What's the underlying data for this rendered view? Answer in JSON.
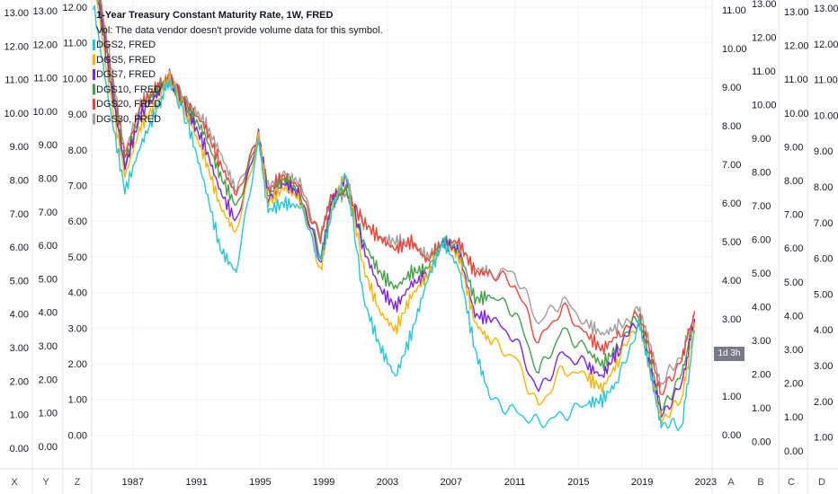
{
  "chart_data": {
    "type": "line",
    "title": "1-Year Treasury Constant Maturity Rate, 1W, FRED",
    "subtitle": "Vol: The data vendor doesn't provide volume data for this symbol.",
    "x_ticks": [
      "1987",
      "1991",
      "1995",
      "1999",
      "2003",
      "2007",
      "2011",
      "2015",
      "2019",
      "2023"
    ],
    "x_range": [
      1984.3,
      2023.4
    ],
    "price_tag": "1d 3h",
    "axes": [
      {
        "id": "X",
        "ticks": [
          "13.00",
          "12.00",
          "11.00",
          "10.00",
          "9.00",
          "8.00",
          "7.00",
          "6.00",
          "5.00",
          "4.00",
          "3.00",
          "2.00",
          "1.00",
          "0.00"
        ]
      },
      {
        "id": "Y",
        "ticks": [
          "13.00",
          "12.00",
          "11.00",
          "10.00",
          "9.00",
          "8.00",
          "7.00",
          "6.00",
          "5.00",
          "4.00",
          "3.00",
          "2.00",
          "1.00",
          "0.00"
        ]
      },
      {
        "id": "Z",
        "ticks": [
          "12.00",
          "11.00",
          "10.00",
          "9.00",
          "8.00",
          "7.00",
          "6.00",
          "5.00",
          "4.00",
          "3.00",
          "2.00",
          "1.00",
          "0.00"
        ]
      },
      {
        "id": "A",
        "ticks": [
          "11.00",
          "10.00",
          "9.00",
          "8.00",
          "7.00",
          "6.00",
          "5.00",
          "4.00",
          "3.00",
          "2.00",
          "1.00",
          "0.00"
        ]
      },
      {
        "id": "B",
        "ticks": [
          "13.00",
          "12.00",
          "11.00",
          "10.00",
          "9.00",
          "8.00",
          "7.00",
          "6.00",
          "5.00",
          "4.00",
          "3.00",
          "2.00",
          "1.00",
          "0.00"
        ]
      },
      {
        "id": "C",
        "ticks": [
          "13.00",
          "12.00",
          "11.00",
          "10.00",
          "9.00",
          "8.00",
          "7.00",
          "6.00",
          "5.00",
          "4.00",
          "3.00",
          "2.00",
          "1.00",
          "0.00"
        ]
      },
      {
        "id": "D",
        "ticks": [
          "13.00",
          "12.00",
          "11.00",
          "10.00",
          "9.00",
          "8.00",
          "7.00",
          "6.00",
          "5.00",
          "4.00",
          "3.00",
          "2.00",
          "1.00"
        ]
      }
    ],
    "ylim": [
      0,
      13.3
    ],
    "series": [
      {
        "name": "DGS2, FRED",
        "color": "#26c6da",
        "points": [
          [
            1984.5,
            11.2
          ],
          [
            1985.5,
            8.6
          ],
          [
            1986.5,
            6.3
          ],
          [
            1987.5,
            7.5
          ],
          [
            1988.5,
            8.4
          ],
          [
            1989.3,
            9.2
          ],
          [
            1990.5,
            8.0
          ],
          [
            1991.5,
            6.5
          ],
          [
            1992.5,
            4.8
          ],
          [
            1993.5,
            4.2
          ],
          [
            1994.9,
            7.6
          ],
          [
            1995.5,
            5.8
          ],
          [
            1996.5,
            6.0
          ],
          [
            1997.5,
            5.9
          ],
          [
            1998.8,
            4.5
          ],
          [
            1999.5,
            5.8
          ],
          [
            2000.4,
            6.8
          ],
          [
            2001.5,
            3.5
          ],
          [
            2002.5,
            2.3
          ],
          [
            2003.5,
            1.5
          ],
          [
            2004.5,
            2.6
          ],
          [
            2005.5,
            4.0
          ],
          [
            2006.5,
            5.0
          ],
          [
            2007.5,
            4.3
          ],
          [
            2008.5,
            2.2
          ],
          [
            2009.5,
            0.9
          ],
          [
            2011.0,
            0.6
          ],
          [
            2012.5,
            0.3
          ],
          [
            2014.0,
            0.5
          ],
          [
            2015.5,
            0.8
          ],
          [
            2016.5,
            0.9
          ],
          [
            2017.5,
            1.4
          ],
          [
            2018.8,
            2.9
          ],
          [
            2019.5,
            1.7
          ],
          [
            2020.2,
            0.3
          ],
          [
            2021.5,
            0.2
          ],
          [
            2022.3,
            2.7
          ]
        ]
      },
      {
        "name": "DGS5, FRED",
        "color": "#ffb300",
        "points": [
          [
            1984.5,
            12.0
          ],
          [
            1985.5,
            9.0
          ],
          [
            1986.5,
            6.7
          ],
          [
            1987.5,
            8.0
          ],
          [
            1988.5,
            8.6
          ],
          [
            1989.3,
            9.3
          ],
          [
            1990.5,
            8.2
          ],
          [
            1991.5,
            7.2
          ],
          [
            1992.5,
            5.9
          ],
          [
            1993.5,
            5.2
          ],
          [
            1994.9,
            7.8
          ],
          [
            1995.5,
            6.0
          ],
          [
            1996.5,
            6.4
          ],
          [
            1997.5,
            6.1
          ],
          [
            1998.8,
            4.3
          ],
          [
            1999.5,
            5.9
          ],
          [
            2000.4,
            6.8
          ],
          [
            2001.5,
            4.3
          ],
          [
            2002.5,
            3.2
          ],
          [
            2003.5,
            2.7
          ],
          [
            2004.5,
            3.6
          ],
          [
            2005.5,
            4.1
          ],
          [
            2006.5,
            5.0
          ],
          [
            2007.5,
            4.6
          ],
          [
            2008.5,
            2.9
          ],
          [
            2009.5,
            2.4
          ],
          [
            2011.0,
            2.0
          ],
          [
            2012.5,
            0.7
          ],
          [
            2014.0,
            1.7
          ],
          [
            2015.5,
            1.5
          ],
          [
            2016.5,
            1.2
          ],
          [
            2017.5,
            1.9
          ],
          [
            2018.8,
            3.0
          ],
          [
            2019.5,
            1.7
          ],
          [
            2020.2,
            0.4
          ],
          [
            2021.5,
            0.9
          ],
          [
            2022.3,
            2.9
          ]
        ]
      },
      {
        "name": "DGS7, FRED",
        "color": "#7e22e0",
        "points": [
          [
            1984.5,
            12.2
          ],
          [
            1985.5,
            9.3
          ],
          [
            1986.5,
            6.9
          ],
          [
            1987.5,
            8.3
          ],
          [
            1988.5,
            8.8
          ],
          [
            1989.3,
            9.3
          ],
          [
            1990.5,
            8.3
          ],
          [
            1991.5,
            7.5
          ],
          [
            1992.5,
            6.3
          ],
          [
            1993.5,
            5.5
          ],
          [
            1994.9,
            7.9
          ],
          [
            1995.5,
            6.1
          ],
          [
            1996.5,
            6.5
          ],
          [
            1997.5,
            6.2
          ],
          [
            1998.8,
            4.5
          ],
          [
            1999.5,
            6.0
          ],
          [
            2000.4,
            6.7
          ],
          [
            2001.5,
            4.8
          ],
          [
            2002.5,
            3.8
          ],
          [
            2003.5,
            3.3
          ],
          [
            2004.5,
            3.9
          ],
          [
            2005.5,
            4.1
          ],
          [
            2006.5,
            5.0
          ],
          [
            2007.5,
            4.7
          ],
          [
            2008.5,
            3.1
          ],
          [
            2009.5,
            3.0
          ],
          [
            2011.0,
            2.5
          ],
          [
            2012.5,
            1.1
          ],
          [
            2014.0,
            2.1
          ],
          [
            2015.5,
            1.8
          ],
          [
            2016.5,
            1.5
          ],
          [
            2017.5,
            2.2
          ],
          [
            2018.8,
            3.0
          ],
          [
            2019.5,
            1.8
          ],
          [
            2020.2,
            0.5
          ],
          [
            2021.5,
            1.3
          ],
          [
            2022.3,
            3.0
          ]
        ]
      },
      {
        "name": "DGS10, FRED",
        "color": "#43a047",
        "points": [
          [
            1984.5,
            12.3
          ],
          [
            1985.5,
            9.5
          ],
          [
            1986.5,
            7.0
          ],
          [
            1987.5,
            8.4
          ],
          [
            1988.5,
            8.9
          ],
          [
            1989.3,
            9.2
          ],
          [
            1990.5,
            8.4
          ],
          [
            1991.5,
            7.8
          ],
          [
            1992.5,
            6.7
          ],
          [
            1993.5,
            5.9
          ],
          [
            1994.9,
            7.8
          ],
          [
            1995.5,
            6.2
          ],
          [
            1996.5,
            6.6
          ],
          [
            1997.5,
            6.3
          ],
          [
            1998.8,
            4.6
          ],
          [
            1999.5,
            6.0
          ],
          [
            2000.4,
            6.4
          ],
          [
            2001.5,
            5.0
          ],
          [
            2002.5,
            4.2
          ],
          [
            2003.5,
            3.8
          ],
          [
            2004.5,
            4.2
          ],
          [
            2005.5,
            4.3
          ],
          [
            2006.5,
            5.0
          ],
          [
            2007.5,
            4.8
          ],
          [
            2008.5,
            3.5
          ],
          [
            2009.5,
            3.6
          ],
          [
            2011.0,
            3.2
          ],
          [
            2012.5,
            1.6
          ],
          [
            2014.0,
            2.7
          ],
          [
            2015.5,
            2.2
          ],
          [
            2016.5,
            1.8
          ],
          [
            2017.5,
            2.3
          ],
          [
            2018.8,
            3.1
          ],
          [
            2019.5,
            1.9
          ],
          [
            2020.2,
            0.6
          ],
          [
            2021.5,
            1.6
          ],
          [
            2022.3,
            3.0
          ]
        ]
      },
      {
        "name": "DGS20, FRED",
        "color": "#f44336",
        "points": [
          [
            1984.5,
            12.4
          ],
          [
            1985.5,
            9.7
          ],
          [
            1986.5,
            7.2
          ],
          [
            1987.5,
            8.5
          ],
          [
            1988.5,
            9.0
          ],
          [
            1989.3,
            9.2
          ],
          [
            1990.5,
            8.5
          ],
          [
            1991.5,
            8.0
          ],
          [
            1992.5,
            7.0
          ],
          [
            1993.5,
            6.2
          ],
          [
            1994.9,
            7.7
          ],
          [
            1995.5,
            6.3
          ],
          [
            1996.5,
            6.7
          ],
          [
            1997.5,
            6.4
          ],
          [
            1998.8,
            5.0
          ],
          [
            1999.5,
            6.2
          ],
          [
            2000.4,
            6.3
          ],
          [
            2001.5,
            5.5
          ],
          [
            2002.5,
            5.1
          ],
          [
            2003.5,
            4.8
          ],
          [
            2004.5,
            5.0
          ],
          [
            2005.5,
            4.5
          ],
          [
            2006.5,
            5.0
          ],
          [
            2007.5,
            5.0
          ],
          [
            2008.5,
            4.2
          ],
          [
            2009.5,
            4.2
          ],
          [
            2011.0,
            3.9
          ],
          [
            2012.5,
            2.4
          ],
          [
            2014.0,
            3.3
          ],
          [
            2015.5,
            2.6
          ],
          [
            2016.5,
            2.2
          ],
          [
            2017.5,
            2.6
          ],
          [
            2018.8,
            3.1
          ],
          [
            2019.5,
            2.1
          ],
          [
            2020.2,
            1.0
          ],
          [
            2021.5,
            2.0
          ],
          [
            2022.3,
            3.2
          ]
        ]
      },
      {
        "name": "DGS30, FRED",
        "color": "#9e9e9e",
        "points": [
          [
            1984.5,
            12.5
          ],
          [
            1985.5,
            9.9
          ],
          [
            1986.5,
            7.3
          ],
          [
            1987.5,
            8.6
          ],
          [
            1988.5,
            9.0
          ],
          [
            1989.3,
            9.2
          ],
          [
            1990.5,
            8.6
          ],
          [
            1991.5,
            8.1
          ],
          [
            1992.5,
            7.3
          ],
          [
            1993.5,
            6.3
          ],
          [
            1994.9,
            7.6
          ],
          [
            1995.5,
            6.4
          ],
          [
            1996.5,
            6.8
          ],
          [
            1997.5,
            6.5
          ],
          [
            1998.8,
            5.1
          ],
          [
            1999.5,
            6.2
          ],
          [
            2000.4,
            6.2
          ],
          [
            2001.5,
            5.5
          ],
          [
            2002.5,
            5.1
          ],
          [
            2003.5,
            5.0
          ],
          [
            2004.5,
            5.0
          ],
          [
            2005.5,
            4.6
          ],
          [
            2006.5,
            5.0
          ],
          [
            2007.5,
            4.9
          ],
          [
            2008.5,
            4.3
          ],
          [
            2009.5,
            4.2
          ],
          [
            2011.0,
            4.2
          ],
          [
            2012.5,
            2.9
          ],
          [
            2014.0,
            3.5
          ],
          [
            2015.5,
            2.9
          ],
          [
            2016.5,
            2.6
          ],
          [
            2017.5,
            2.8
          ],
          [
            2018.8,
            3.2
          ],
          [
            2019.5,
            2.3
          ],
          [
            2020.2,
            1.3
          ],
          [
            2021.5,
            2.1
          ],
          [
            2022.3,
            3.1
          ]
        ]
      }
    ]
  }
}
